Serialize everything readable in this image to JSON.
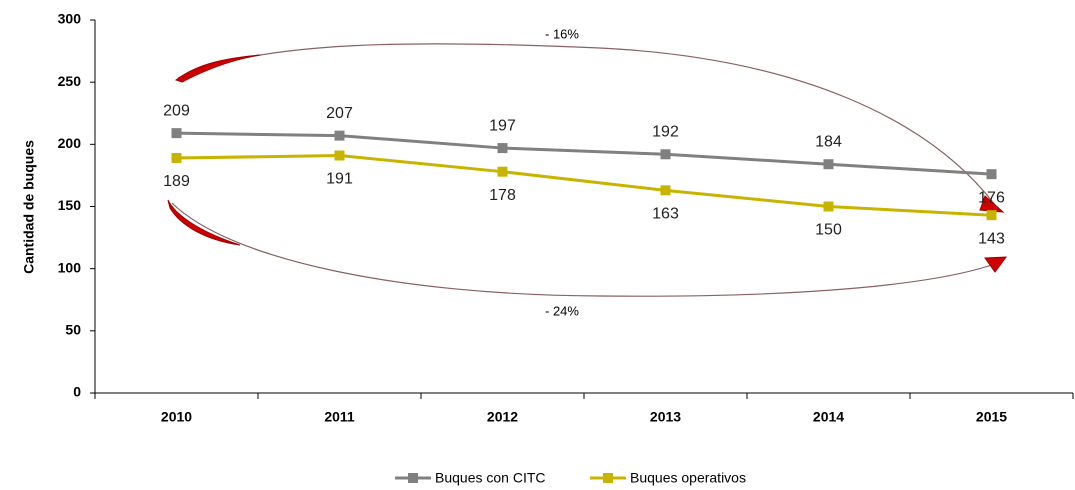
{
  "chart_data": {
    "type": "line",
    "y_label": "Cantidad de buques",
    "categories": [
      "2010",
      "2011",
      "2012",
      "2013",
      "2014",
      "2015"
    ],
    "series": [
      {
        "name": "Buques con CITC",
        "color": "#808080",
        "values": [
          209,
          207,
          197,
          192,
          184,
          176
        ]
      },
      {
        "name": "Buques operativos",
        "color": "#c8b400",
        "values": [
          189,
          191,
          178,
          163,
          150,
          143
        ]
      }
    ],
    "ylim": [
      0,
      300
    ],
    "yticks": [
      0,
      50,
      100,
      150,
      200,
      250,
      300
    ],
    "annotations": [
      "- 16%",
      "- 24%"
    ],
    "legend": "bottom"
  }
}
